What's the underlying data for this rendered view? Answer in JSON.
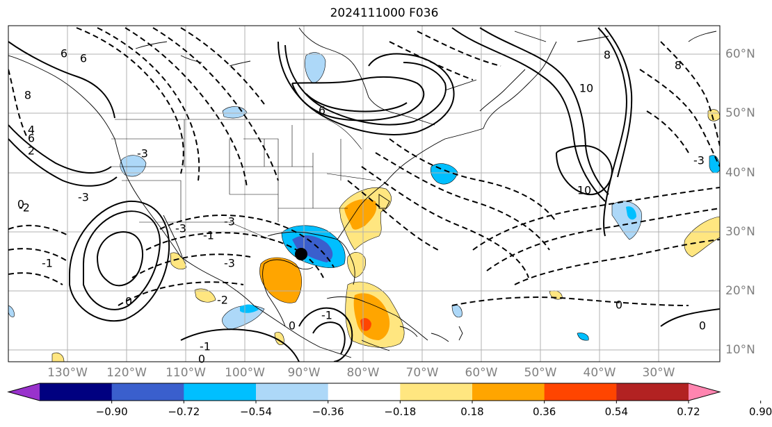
{
  "title": "2024111000 F036",
  "lon_labels": [
    "130°W",
    "120°W",
    "110°W",
    "100°W",
    "90°W",
    "80°W",
    "70°W",
    "60°W",
    "50°W",
    "40°W",
    "30°W"
  ],
  "lat_labels": [
    "60°N",
    "50°N",
    "40°N",
    "30°N",
    "20°N",
    "10°N"
  ],
  "colorbar": {
    "ticks": [
      "−0.90",
      "−0.72",
      "−0.54",
      "−0.36",
      "−0.18",
      "0.18",
      "0.36",
      "0.54",
      "0.72",
      "0.90"
    ],
    "colors": [
      "#9932cc",
      "#000080",
      "#3a5fcd",
      "#00bfff",
      "#add8f8",
      "#ffffff",
      "#ffe680",
      "#ffa500",
      "#ff4500",
      "#b22222",
      "#ff85b0"
    ]
  },
  "contour_labels": [
    "6",
    "4",
    "2",
    "0",
    "8",
    "6",
    "-3",
    "-3",
    "6",
    "10",
    "8",
    "10",
    "8",
    "-3",
    "6",
    "-1",
    "-2",
    "-3",
    "-1",
    "-3",
    "-2",
    "0",
    "-3",
    "0",
    "-1",
    "0",
    "-1",
    "0",
    "0"
  ],
  "marker": "storm-center"
}
